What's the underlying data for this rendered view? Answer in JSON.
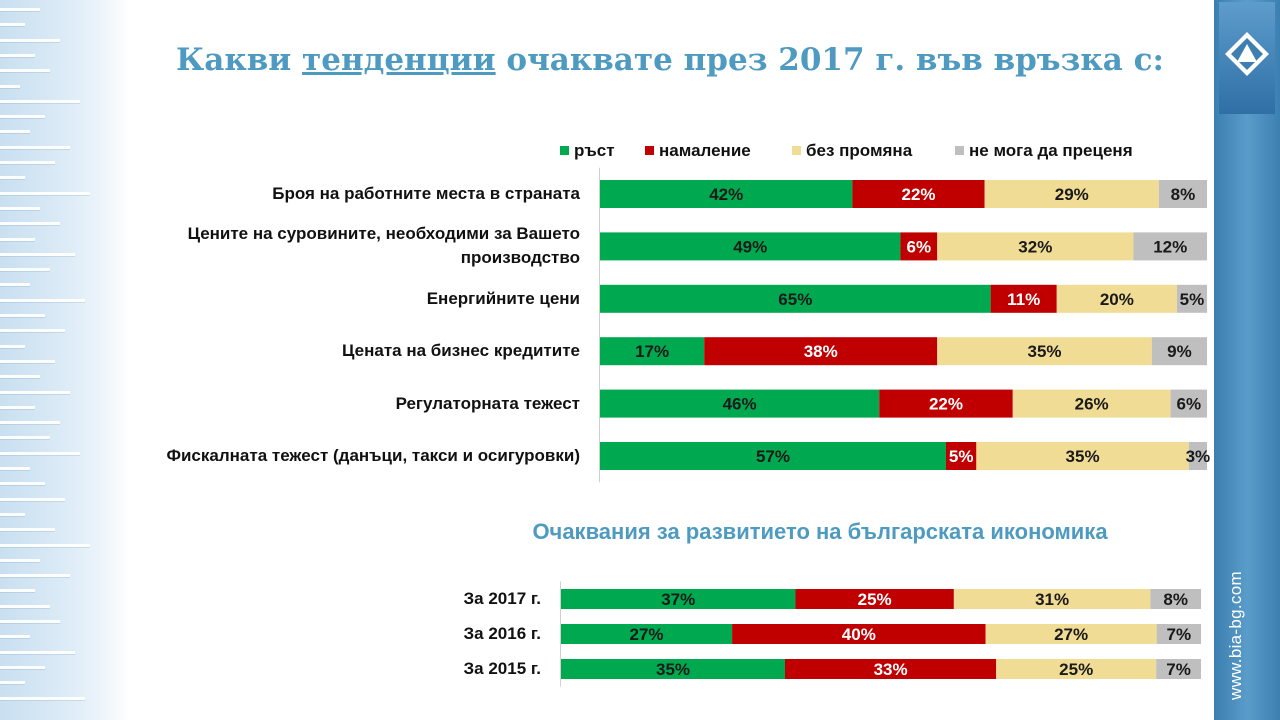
{
  "header": {
    "title_pre": "Какви ",
    "title_underlined": "тенденции",
    "title_post": " очаквате през 2017 г. във връзка с:"
  },
  "sidebar": {
    "website": "www.bia-bg.com"
  },
  "colors": {
    "growth": "#00a94f",
    "decrease": "#c00000",
    "no_change": "#f0dc94",
    "cannot_judge": "#bfbfbf",
    "title": "#4e9ac0"
  },
  "chart_data": [
    {
      "type": "bar",
      "orientation": "horizontal",
      "stacked": "100%",
      "legend": [
        "ръст",
        "намаление",
        "без промяна",
        "не мога да преценя"
      ],
      "legend_position": "top",
      "categories": [
        "Броя на работните места в страната",
        "Цените на суровините, необходими за Вашето производство",
        "Енергийните цени",
        "Цената на бизнес кредитите",
        "Регулаторната тежест",
        "Фискалната тежест (данъци, такси и осигуровки)"
      ],
      "series": [
        {
          "name": "ръст",
          "values": [
            42,
            49,
            65,
            17,
            46,
            57
          ]
        },
        {
          "name": "намаление",
          "values": [
            22,
            6,
            11,
            38,
            22,
            5
          ]
        },
        {
          "name": "без промяна",
          "values": [
            29,
            32,
            20,
            35,
            26,
            35
          ]
        },
        {
          "name": "не мога да преценя",
          "values": [
            8,
            12,
            5,
            9,
            6,
            3
          ]
        }
      ],
      "value_suffix": "%"
    },
    {
      "type": "bar",
      "orientation": "horizontal",
      "stacked": "100%",
      "title": "Очаквания за развитието на българската икономика",
      "categories": [
        "За 2017 г.",
        "За 2016 г.",
        "За 2015 г."
      ],
      "series": [
        {
          "name": "ръст",
          "values": [
            37,
            27,
            35
          ]
        },
        {
          "name": "намаление",
          "values": [
            25,
            40,
            33
          ]
        },
        {
          "name": "без промяна",
          "values": [
            31,
            27,
            25
          ]
        },
        {
          "name": "не мога да преценя",
          "values": [
            8,
            7,
            7
          ]
        }
      ],
      "value_suffix": "%"
    }
  ]
}
